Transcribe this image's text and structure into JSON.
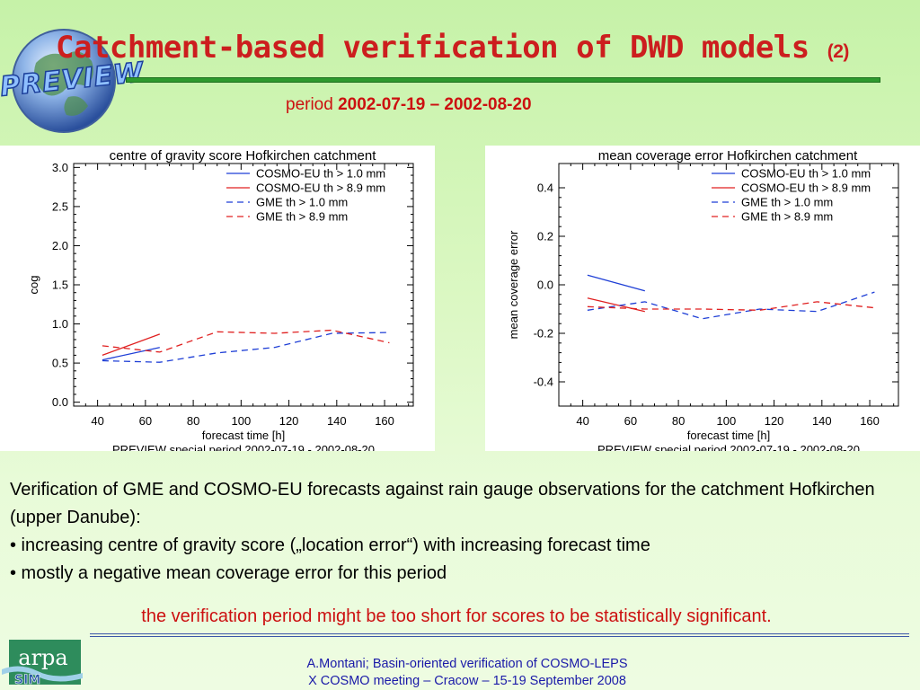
{
  "slide": {
    "title_main": "Catchment-based verification of DWD models",
    "title_num": "(2)",
    "subtitle_prefix": "period",
    "subtitle_period": "2002-07-19 – 2002-08-20",
    "preview_logo": "PREVIEW",
    "body_line1": "Verification of GME and COSMO-EU forecasts against rain gauge observations for the catchment Hofkirchen (upper Danube):",
    "bullet1": "• increasing centre of gravity score („location error“) with increasing forecast time",
    "bullet2": "• mostly a negative mean coverage error for this period",
    "conclusion": "the verification period might be too short for scores to be statistically significant.",
    "footer_line1": "A.Montani; Basin-oriented verification of COSMO-LEPS",
    "footer_line2": "X COSMO meeting – Cracow – 15-19 September 2008",
    "arpa_logo": "arpa SIM",
    "colors": {
      "title_red": "#cc1e1e",
      "rule_green": "#2e9a2e",
      "cosmo_blue": "#1f3fd6",
      "gme_red": "#e02020",
      "footer_blue": "#1a1aa8"
    }
  },
  "chart_data": [
    {
      "type": "line",
      "title": "centre of gravity score Hofkirchen catchment",
      "xlabel": "forecast time [h]",
      "ylabel": "cog",
      "footnote": "PREVIEW special period 2002-07-19 - 2002-08-20",
      "xlim": [
        30,
        172
      ],
      "ylim": [
        -0.05,
        3.05
      ],
      "xticks": [
        40,
        60,
        80,
        100,
        120,
        140,
        160
      ],
      "yticks": [
        0.0,
        0.5,
        1.0,
        1.5,
        2.0,
        2.5,
        3.0
      ],
      "ytick_labels": [
        "0.0",
        "0.5",
        "1.0",
        "1.5",
        "2.0",
        "2.5",
        "3.0"
      ],
      "legend_position": "top-right",
      "series": [
        {
          "name": "COSMO-EU th > 1.0 mm",
          "color": "#1f3fd6",
          "dash": "solid",
          "x": [
            42,
            66
          ],
          "y": [
            0.54,
            0.7
          ]
        },
        {
          "name": "COSMO-EU th > 8.9 mm",
          "color": "#e02020",
          "dash": "solid",
          "x": [
            42,
            66
          ],
          "y": [
            0.6,
            0.87
          ]
        },
        {
          "name": "GME th > 1.0 mm",
          "color": "#1f3fd6",
          "dash": "dashed",
          "x": [
            42,
            66,
            90,
            114,
            138,
            162
          ],
          "y": [
            0.53,
            0.51,
            0.63,
            0.7,
            0.88,
            0.89
          ]
        },
        {
          "name": "GME th > 8.9 mm",
          "color": "#e02020",
          "dash": "dashed",
          "x": [
            42,
            66,
            90,
            114,
            138,
            162
          ],
          "y": [
            0.72,
            0.64,
            0.9,
            0.88,
            0.92,
            0.76
          ]
        }
      ]
    },
    {
      "type": "line",
      "title": "mean coverage error Hofkirchen catchment",
      "xlabel": "forecast time [h]",
      "ylabel": "mean coverage error",
      "footnote": "PREVIEW special period 2002-07-19 - 2002-08-20",
      "xlim": [
        30,
        172
      ],
      "ylim": [
        -0.5,
        0.5
      ],
      "xticks": [
        40,
        60,
        80,
        100,
        120,
        140,
        160
      ],
      "yticks": [
        -0.4,
        -0.2,
        0.0,
        0.2,
        0.4
      ],
      "ytick_labels": [
        "-0.4",
        "-0.2",
        "0.0",
        "0.2",
        "0.4"
      ],
      "legend_position": "top-right",
      "series": [
        {
          "name": "COSMO-EU th > 1.0 mm",
          "color": "#1f3fd6",
          "dash": "solid",
          "x": [
            42,
            66
          ],
          "y": [
            0.04,
            -0.025
          ]
        },
        {
          "name": "COSMO-EU th > 8.9 mm",
          "color": "#e02020",
          "dash": "solid",
          "x": [
            42,
            66
          ],
          "y": [
            -0.055,
            -0.11
          ]
        },
        {
          "name": "GME th > 1.0 mm",
          "color": "#1f3fd6",
          "dash": "dashed",
          "x": [
            42,
            66,
            90,
            114,
            138,
            162
          ],
          "y": [
            -0.105,
            -0.07,
            -0.14,
            -0.1,
            -0.11,
            -0.03
          ]
        },
        {
          "name": "GME th > 8.9 mm",
          "color": "#e02020",
          "dash": "dashed",
          "x": [
            42,
            66,
            90,
            114,
            138,
            162
          ],
          "y": [
            -0.09,
            -0.1,
            -0.1,
            -0.105,
            -0.07,
            -0.095
          ]
        }
      ]
    }
  ]
}
